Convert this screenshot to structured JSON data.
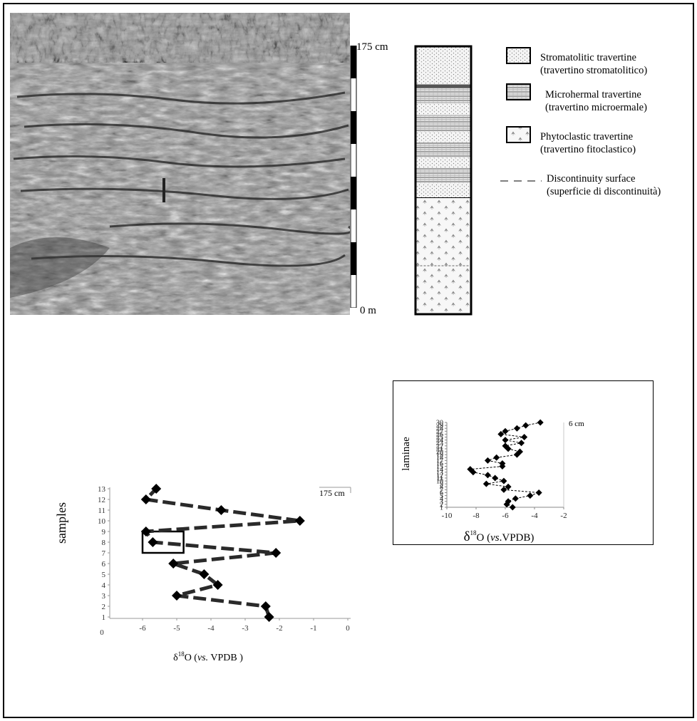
{
  "section": {
    "scale_top": "175 cm",
    "scale_bottom": "0 m"
  },
  "legend": {
    "items": [
      {
        "name": "Stromatolitic travertine",
        "italian": "(travertino stromatolitico)",
        "pattern": "stipple"
      },
      {
        "name": "Microhermal travertine",
        "italian": "(travertino microermale)",
        "pattern": "bricks"
      },
      {
        "name": "Phytoclastic travertine",
        "italian": "(travertino fitoclastico)",
        "pattern": "leaves"
      },
      {
        "name": "Discontinuity surface",
        "italian": "(superficie di discontinuità)",
        "pattern": "dashed-line"
      }
    ]
  },
  "chart_data": [
    {
      "type": "line",
      "marker": "diamond",
      "line_style": "thick-dashed",
      "ylabel": "samples",
      "xlabel_prefix": "δ",
      "xlabel_sup": "18",
      "xlabel_mid": "O (",
      "xlabel_italic": "vs.",
      "xlabel_end": " VPDB )",
      "annotation": "175 cm",
      "xlim": [
        -6,
        0
      ],
      "ylim": [
        1,
        13
      ],
      "xticks": [
        "-6",
        "-5",
        "-4",
        "-3",
        "-2",
        "-1",
        "0"
      ],
      "extra_xtick_label": "0",
      "yticks": [
        "1",
        "2",
        "3",
        "4",
        "5",
        "6",
        "7",
        "8",
        "9",
        "10",
        "11",
        "12",
        "13"
      ],
      "y": [
        1,
        2,
        3,
        4,
        5,
        6,
        7,
        8,
        9,
        10,
        11,
        12,
        13
      ],
      "x": [
        -2.3,
        -2.4,
        -5.0,
        -3.8,
        -4.2,
        -5.1,
        -2.1,
        -5.7,
        -5.9,
        -1.4,
        -3.7,
        -5.9,
        -5.6
      ],
      "highlight_box": {
        "x_range": [
          -6,
          -4.8
        ],
        "y_range": [
          7,
          9
        ]
      }
    },
    {
      "type": "line",
      "marker": "diamond",
      "line_style": "thin-dashed",
      "ylabel": "laminae",
      "xlabel_prefix": "δ",
      "xlabel_sup": "18",
      "xlabel_mid": "O (",
      "xlabel_italic": "vs",
      "xlabel_end": ".VPDB)",
      "annotation": "6 cm",
      "xlim": [
        -10,
        -2
      ],
      "ylim": [
        1,
        30
      ],
      "xticks": [
        "-10",
        "-8",
        "-6",
        "-4",
        "-2"
      ],
      "yticks": [
        "1",
        "2",
        "3",
        "4",
        "5",
        "6",
        "7",
        "8",
        "9",
        "10",
        "11",
        "12",
        "13",
        "14",
        "15",
        "16",
        "17",
        "18",
        "19",
        "20",
        "21",
        "22",
        "23",
        "24",
        "25",
        "26",
        "27",
        "28",
        "29",
        "30"
      ],
      "y": [
        1,
        2,
        3,
        4,
        5,
        6,
        7,
        8,
        9,
        10,
        11,
        12,
        13,
        14,
        15,
        16,
        17,
        18,
        19,
        20,
        21,
        22,
        23,
        24,
        25,
        26,
        27,
        28,
        29,
        30
      ],
      "x": [
        -5.5,
        -5.9,
        -5.8,
        -5.3,
        -4.3,
        -3.7,
        -6.1,
        -5.8,
        -7.3,
        -6.1,
        -6.7,
        -7.2,
        -8.2,
        -8.4,
        -6.2,
        -6.2,
        -7.2,
        -6.6,
        -5.2,
        -5.0,
        -5.8,
        -6.0,
        -4.9,
        -6.0,
        -4.7,
        -6.3,
        -6.0,
        -5.2,
        -4.6,
        -3.6
      ]
    }
  ]
}
